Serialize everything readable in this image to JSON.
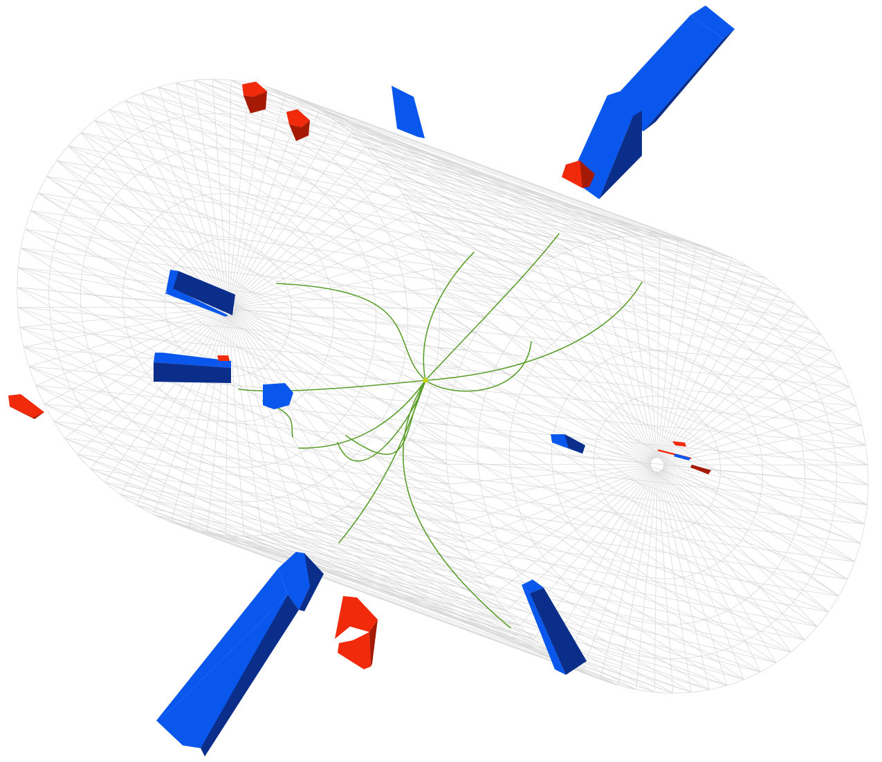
{
  "scene": {
    "background": "#ffffff",
    "detector_mesh_color": "#d9d9d9",
    "track_color": "#5a9e2a",
    "vertex_color": "#c8d400",
    "deposit_colors": {
      "hadronic_light": "#0a57ee",
      "hadronic_dark": "#0a2e8a",
      "electromagnetic_light": "#f02a0a",
      "electromagnetic_dark": "#a41a05"
    },
    "objects": {
      "detector": "detector-mesh-icon",
      "tracks": "particle-track-icon",
      "vertex": "interaction-vertex-icon",
      "hadronic_towers": "blue-tower-icon",
      "em_towers": "red-tower-icon"
    }
  }
}
